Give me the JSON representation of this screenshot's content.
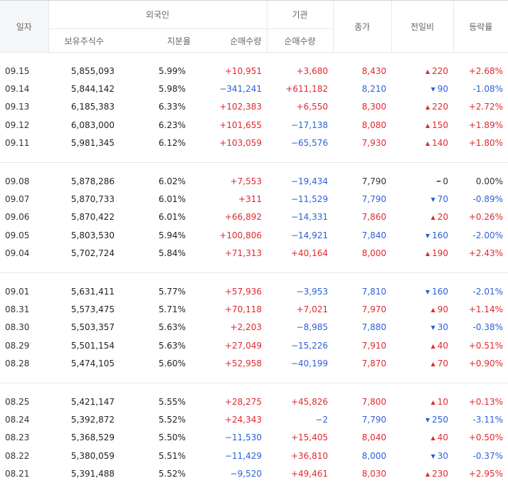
{
  "headers": {
    "date": "일자",
    "foreign": "외국인",
    "holdings": "보유주식수",
    "ratio": "지분율",
    "foreign_net": "순매수량",
    "institution": "기관",
    "inst_net": "순매수량",
    "close": "종가",
    "change": "전일비",
    "rate": "등락률"
  },
  "groups": [
    [
      {
        "date": "09.15",
        "holdings": "5,855,093",
        "ratio": "5.99%",
        "foreign_net": "+10,951",
        "inst_net": "+3,680",
        "close": "8,430",
        "change": "220",
        "dir": "up",
        "rate": "+2.68%"
      },
      {
        "date": "09.14",
        "holdings": "5,844,142",
        "ratio": "5.98%",
        "foreign_net": "−341,241",
        "inst_net": "+611,182",
        "close": "8,210",
        "change": "90",
        "dir": "down",
        "rate": "-1.08%"
      },
      {
        "date": "09.13",
        "holdings": "6,185,383",
        "ratio": "6.33%",
        "foreign_net": "+102,383",
        "inst_net": "+6,550",
        "close": "8,300",
        "change": "220",
        "dir": "up",
        "rate": "+2.72%"
      },
      {
        "date": "09.12",
        "holdings": "6,083,000",
        "ratio": "6.23%",
        "foreign_net": "+101,655",
        "inst_net": "−17,138",
        "close": "8,080",
        "change": "150",
        "dir": "up",
        "rate": "+1.89%"
      },
      {
        "date": "09.11",
        "holdings": "5,981,345",
        "ratio": "6.12%",
        "foreign_net": "+103,059",
        "inst_net": "−65,576",
        "close": "7,930",
        "change": "140",
        "dir": "up",
        "rate": "+1.80%"
      }
    ],
    [
      {
        "date": "09.08",
        "holdings": "5,878,286",
        "ratio": "6.02%",
        "foreign_net": "+7,553",
        "inst_net": "−19,434",
        "close": "7,790",
        "change": "0",
        "dir": "flat",
        "rate": "0.00%"
      },
      {
        "date": "09.07",
        "holdings": "5,870,733",
        "ratio": "6.01%",
        "foreign_net": "+311",
        "inst_net": "−11,529",
        "close": "7,790",
        "change": "70",
        "dir": "down",
        "rate": "-0.89%"
      },
      {
        "date": "09.06",
        "holdings": "5,870,422",
        "ratio": "6.01%",
        "foreign_net": "+66,892",
        "inst_net": "−14,331",
        "close": "7,860",
        "change": "20",
        "dir": "up",
        "rate": "+0.26%"
      },
      {
        "date": "09.05",
        "holdings": "5,803,530",
        "ratio": "5.94%",
        "foreign_net": "+100,806",
        "inst_net": "−14,921",
        "close": "7,840",
        "change": "160",
        "dir": "down",
        "rate": "-2.00%"
      },
      {
        "date": "09.04",
        "holdings": "5,702,724",
        "ratio": "5.84%",
        "foreign_net": "+71,313",
        "inst_net": "+40,164",
        "close": "8,000",
        "change": "190",
        "dir": "up",
        "rate": "+2.43%"
      }
    ],
    [
      {
        "date": "09.01",
        "holdings": "5,631,411",
        "ratio": "5.77%",
        "foreign_net": "+57,936",
        "inst_net": "−3,953",
        "close": "7,810",
        "change": "160",
        "dir": "down",
        "rate": "-2.01%"
      },
      {
        "date": "08.31",
        "holdings": "5,573,475",
        "ratio": "5.71%",
        "foreign_net": "+70,118",
        "inst_net": "+7,021",
        "close": "7,970",
        "change": "90",
        "dir": "up",
        "rate": "+1.14%"
      },
      {
        "date": "08.30",
        "holdings": "5,503,357",
        "ratio": "5.63%",
        "foreign_net": "+2,203",
        "inst_net": "−8,985",
        "close": "7,880",
        "change": "30",
        "dir": "down",
        "rate": "-0.38%"
      },
      {
        "date": "08.29",
        "holdings": "5,501,154",
        "ratio": "5.63%",
        "foreign_net": "+27,049",
        "inst_net": "−15,226",
        "close": "7,910",
        "change": "40",
        "dir": "up",
        "rate": "+0.51%"
      },
      {
        "date": "08.28",
        "holdings": "5,474,105",
        "ratio": "5.60%",
        "foreign_net": "+52,958",
        "inst_net": "−40,199",
        "close": "7,870",
        "change": "70",
        "dir": "up",
        "rate": "+0.90%"
      }
    ],
    [
      {
        "date": "08.25",
        "holdings": "5,421,147",
        "ratio": "5.55%",
        "foreign_net": "+28,275",
        "inst_net": "+45,826",
        "close": "7,800",
        "change": "10",
        "dir": "up",
        "rate": "+0.13%"
      },
      {
        "date": "08.24",
        "holdings": "5,392,872",
        "ratio": "5.52%",
        "foreign_net": "+24,343",
        "inst_net": "−2",
        "close": "7,790",
        "change": "250",
        "dir": "down",
        "rate": "-3.11%"
      },
      {
        "date": "08.23",
        "holdings": "5,368,529",
        "ratio": "5.50%",
        "foreign_net": "−11,530",
        "inst_net": "+15,405",
        "close": "8,040",
        "change": "40",
        "dir": "up",
        "rate": "+0.50%"
      },
      {
        "date": "08.22",
        "holdings": "5,380,059",
        "ratio": "5.51%",
        "foreign_net": "−11,429",
        "inst_net": "+36,810",
        "close": "8,000",
        "change": "30",
        "dir": "down",
        "rate": "-0.37%"
      },
      {
        "date": "08.21",
        "holdings": "5,391,488",
        "ratio": "5.52%",
        "foreign_net": "−9,520",
        "inst_net": "+49,461",
        "close": "8,030",
        "change": "230",
        "dir": "up",
        "rate": "+2.95%"
      }
    ]
  ],
  "colors": {
    "up": "#e0282e",
    "down": "#2b5fd9",
    "flat": "#333333"
  },
  "icons": {
    "up": "arrow-up-icon",
    "down": "arrow-down-icon",
    "flat": "dash-icon"
  }
}
